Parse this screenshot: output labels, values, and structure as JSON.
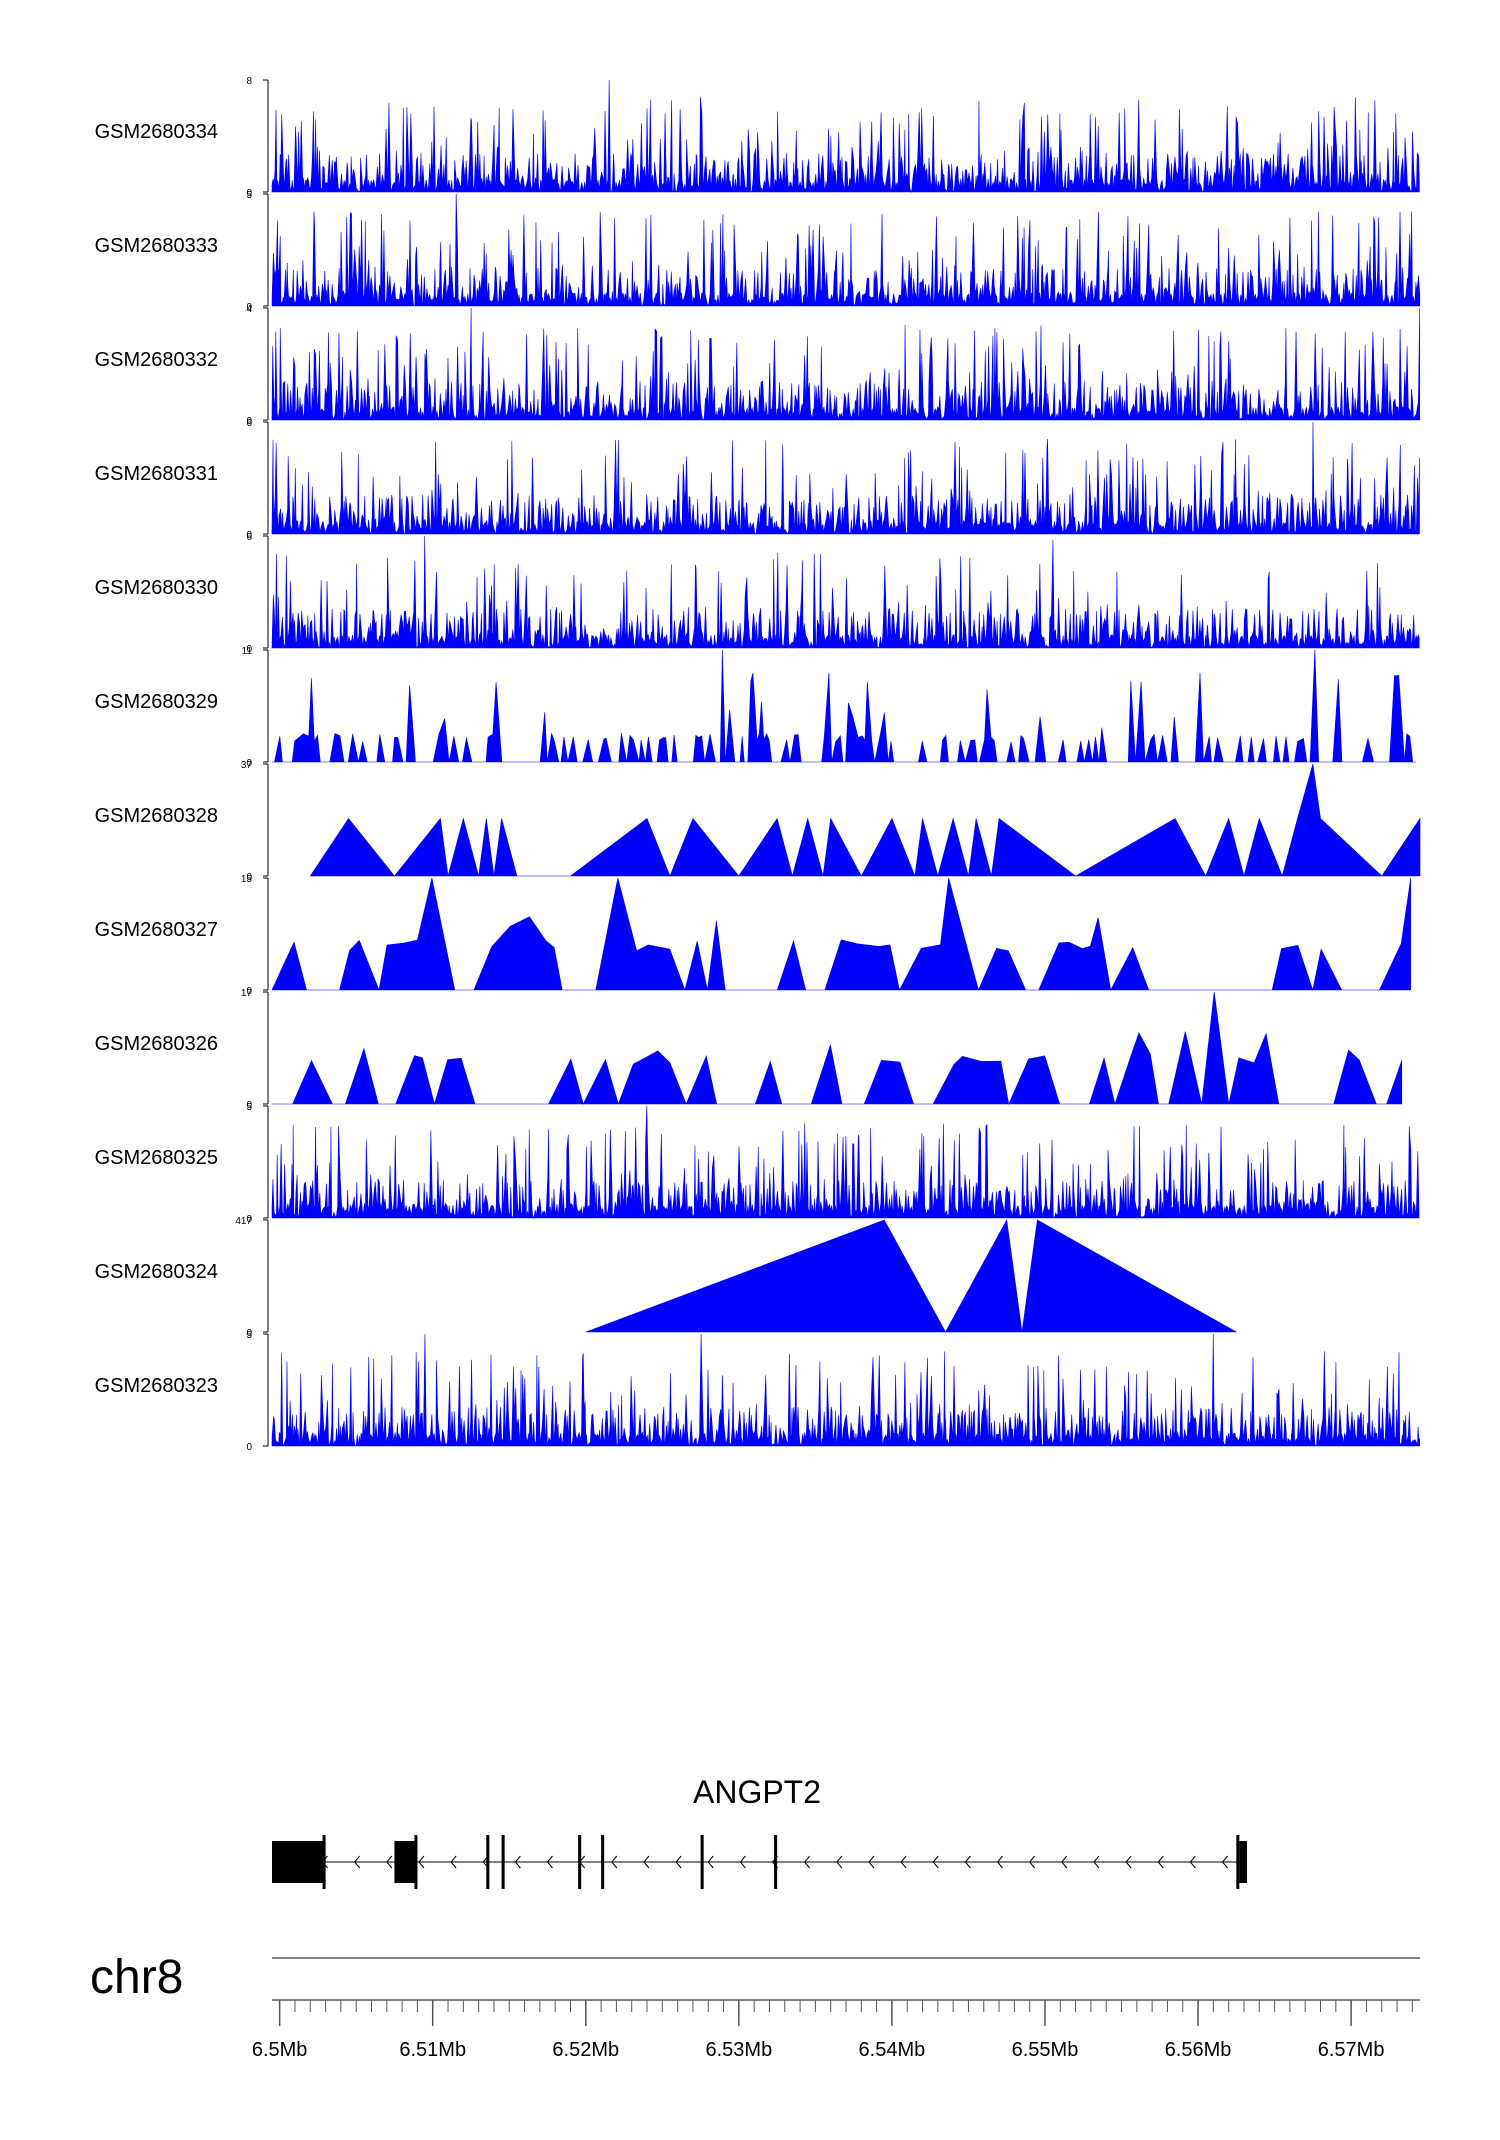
{
  "chart_data": {
    "type": "area",
    "x_unit": "Mb",
    "xlim": [
      6.4995,
      6.5745
    ],
    "tracks": [
      {
        "label": "GSM2680334",
        "ymax": 8,
        "ytick_top": "8",
        "ytick_bottom": "0",
        "color": "#0000ff",
        "seed": 334,
        "style": "dense",
        "peaks": [
          [
            6.5215,
            8
          ]
        ]
      },
      {
        "label": "GSM2680333",
        "ymax": 5,
        "ytick_top": "5",
        "ytick_bottom": "0",
        "color": "#0000ff",
        "seed": 333,
        "style": "dense",
        "peaks": [
          [
            6.5115,
            5
          ],
          [
            6.5535,
            4.2
          ]
        ]
      },
      {
        "label": "GSM2680332",
        "ymax": 4,
        "ytick_top": "4",
        "ytick_bottom": "0",
        "color": "#0000ff",
        "seed": 332,
        "style": "dense",
        "peaks": [
          [
            6.5125,
            4
          ],
          [
            6.5745,
            4
          ]
        ]
      },
      {
        "label": "GSM2680331",
        "ymax": 6,
        "ytick_top": "6",
        "ytick_bottom": "0",
        "color": "#0000ff",
        "seed": 331,
        "style": "dense",
        "peaks": [
          [
            6.5675,
            6
          ]
        ]
      },
      {
        "label": "GSM2680330",
        "ymax": 6,
        "ytick_top": "6",
        "ytick_bottom": "0",
        "color": "#0000ff",
        "seed": 330,
        "style": "dense",
        "peaks": [
          [
            6.5095,
            6
          ],
          [
            6.5505,
            5.8
          ]
        ]
      },
      {
        "label": "GSM2680329",
        "ymax": 11,
        "ytick_top": "11",
        "ytick_bottom": "0",
        "color": "#0000ff",
        "seed": 329,
        "style": "sparse",
        "peaks": [
          [
            6.529,
            11
          ],
          [
            6.5675,
            11
          ]
        ]
      },
      {
        "label": "GSM2680328",
        "ymax": 37,
        "ytick_top": "37",
        "ytick_bottom": "0",
        "color": "#0000ff",
        "style": "points",
        "x": [
          6.502,
          6.5045,
          6.5075,
          6.5105,
          6.511,
          6.512,
          6.513,
          6.5135,
          6.514,
          6.5145,
          6.5155,
          6.519,
          6.524,
          6.5255,
          6.527,
          6.53,
          6.5325,
          6.5335,
          6.5345,
          6.5355,
          6.536,
          6.538,
          6.54,
          6.5415,
          6.542,
          6.543,
          6.544,
          6.545,
          6.5455,
          6.5465,
          6.547,
          6.552,
          6.5585,
          6.5605,
          6.562,
          6.563,
          6.564,
          6.5655,
          6.5665,
          6.5675,
          6.568,
          6.572,
          6.5745
        ],
        "y": [
          0,
          19,
          0,
          19,
          0,
          19,
          0,
          19,
          0,
          19,
          0,
          0,
          19,
          0,
          19,
          0,
          19,
          0,
          19,
          0,
          19,
          0,
          19,
          0,
          19,
          0,
          19,
          0,
          19,
          0,
          19,
          0,
          19,
          0,
          19,
          0,
          19,
          0,
          19,
          37,
          19,
          0,
          19
        ]
      },
      {
        "label": "GSM2680327",
        "ymax": 15,
        "ytick_top": "15",
        "ytick_bottom": "0",
        "color": "#0000ff",
        "seed": 327,
        "style": "triangles",
        "peaks": [
          [
            6.5095,
            15
          ],
          [
            6.5225,
            15
          ],
          [
            6.5435,
            15
          ],
          [
            6.5745,
            15
          ]
        ]
      },
      {
        "label": "GSM2680326",
        "ymax": 17,
        "ytick_top": "17",
        "ytick_bottom": "0",
        "color": "#0000ff",
        "seed": 326,
        "style": "triangles",
        "peaks": [
          [
            6.561,
            17
          ],
          [
            6.559,
            11
          ]
        ]
      },
      {
        "label": "GSM2680325",
        "ymax": 5,
        "ytick_top": "5",
        "ytick_bottom": "0",
        "color": "#0000ff",
        "seed": 325,
        "style": "dense",
        "peaks": [
          [
            6.524,
            5
          ]
        ]
      },
      {
        "label": "GSM2680324",
        "ymax": 417,
        "ytick_top": "417",
        "ytick_bottom": "0",
        "color": "#0000ff",
        "style": "points",
        "x": [
          6.52,
          6.5395,
          6.5435,
          6.5475,
          6.5485,
          6.5495,
          6.5625
        ],
        "y": [
          0,
          417,
          0,
          417,
          0,
          417,
          0
        ]
      },
      {
        "label": "GSM2680323",
        "ymax": 5,
        "ytick_top": "5",
        "ytick_bottom": "0",
        "color": "#0000ff",
        "seed": 323,
        "style": "dense",
        "peaks": [
          [
            6.5095,
            5
          ],
          [
            6.5275,
            5
          ],
          [
            6.561,
            5
          ]
        ]
      }
    ],
    "gene": {
      "name": "ANGPT2",
      "strand": "-",
      "start": 6.4995,
      "end": 6.563,
      "exons": [
        [
          6.4995,
          6.503
        ],
        [
          6.5075,
          6.509
        ],
        [
          6.5135,
          6.5137
        ],
        [
          6.5145,
          6.5147
        ],
        [
          6.5195,
          6.5197
        ],
        [
          6.521,
          6.5212
        ],
        [
          6.5275,
          6.5277
        ],
        [
          6.5323,
          6.5325
        ],
        [
          6.5625,
          6.5632
        ]
      ]
    },
    "axis": {
      "chromosome": "chr8",
      "ticks": [
        6.5,
        6.51,
        6.52,
        6.53,
        6.54,
        6.55,
        6.56,
        6.57
      ],
      "tick_labels": [
        "6.5Mb",
        "6.51Mb",
        "6.52Mb",
        "6.53Mb",
        "6.54Mb",
        "6.55Mb",
        "6.56Mb",
        "6.57Mb"
      ],
      "minor_step": 0.001
    }
  }
}
